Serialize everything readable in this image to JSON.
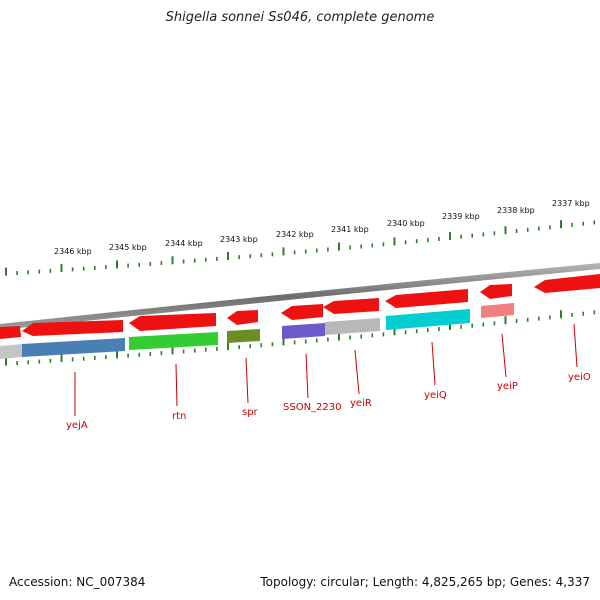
{
  "title": "Shigella sonnei Ss046, complete genome",
  "footer": {
    "accession": "Accession: NC_007384",
    "info": "Topology: circular; Length: 4,825,265 bp; Genes: 4,337"
  },
  "colors": {
    "tick": "#2e7d2e",
    "backbone": "#808080",
    "gene_red": "#ee1111",
    "label": "#cc0000"
  },
  "kbp_labels": [
    "2346 kbp",
    "2345 kbp",
    "2344 kbp",
    "2343 kbp",
    "2342 kbp",
    "2341 kbp",
    "2340 kbp",
    "2339 kbp",
    "2338 kbp",
    "2337 kbp"
  ],
  "genes": [
    {
      "name": "yejA",
      "color": "#4a7fb5"
    },
    {
      "name": "rtn",
      "color": "#33cc33"
    },
    {
      "name": "spr",
      "color": "#6b8e23"
    },
    {
      "name": "SSON_2230",
      "color": "#6a5acd"
    },
    {
      "name": "yeiR",
      "color": "#b8b8b8"
    },
    {
      "name": "yeiQ",
      "color": "#00ced1"
    },
    {
      "name": "yeiP",
      "color": "#f08080"
    },
    {
      "name": "yeiO",
      "color": "#ee1111"
    }
  ]
}
